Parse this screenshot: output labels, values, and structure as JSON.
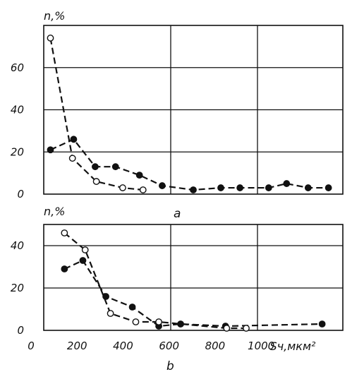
{
  "chart_data": [
    {
      "type": "line",
      "panel_label": "a",
      "ylabel": "n,%",
      "xlim": [
        50,
        1300
      ],
      "ylim": [
        0,
        80
      ],
      "yticks": [
        0,
        20,
        40,
        60
      ],
      "ytick_labels": [
        "0",
        "20",
        "40",
        "60"
      ],
      "grid": true,
      "series": [
        {
          "marker": "filled-circle",
          "x": [
            78,
            175,
            265,
            350,
            450,
            545,
            675,
            790,
            870,
            990,
            1065,
            1155,
            1240
          ],
          "y": [
            21,
            26,
            13,
            13,
            9,
            4,
            2,
            3,
            3,
            3,
            5,
            3,
            3
          ]
        },
        {
          "marker": "open-circle",
          "x": [
            78,
            170,
            270,
            380,
            465
          ],
          "y": [
            74,
            17,
            6,
            3,
            2
          ]
        }
      ]
    },
    {
      "type": "line",
      "panel_label": "b",
      "ylabel": "n,%",
      "xlabel": "Sч,мкм²",
      "xlim": [
        0,
        1300
      ],
      "ylim": [
        0,
        50
      ],
      "xticks": [
        0,
        200,
        400,
        600,
        800,
        1000
      ],
      "xtick_labels": [
        "0",
        "200",
        "400",
        "600",
        "800",
        "1000"
      ],
      "yticks": [
        0,
        20,
        40
      ],
      "ytick_labels": [
        "0",
        "20",
        "40"
      ],
      "grid": true,
      "series": [
        {
          "marker": "filled-circle",
          "x": [
            90,
            170,
            270,
            385,
            500,
            595,
            790,
            1210
          ],
          "y": [
            29,
            33,
            16,
            11,
            2,
            3,
            2,
            3
          ]
        },
        {
          "marker": "open-circle",
          "x": [
            90,
            180,
            290,
            400,
            500,
            795,
            880
          ],
          "y": [
            46,
            38,
            8,
            4,
            4,
            1,
            1
          ]
        }
      ]
    }
  ]
}
